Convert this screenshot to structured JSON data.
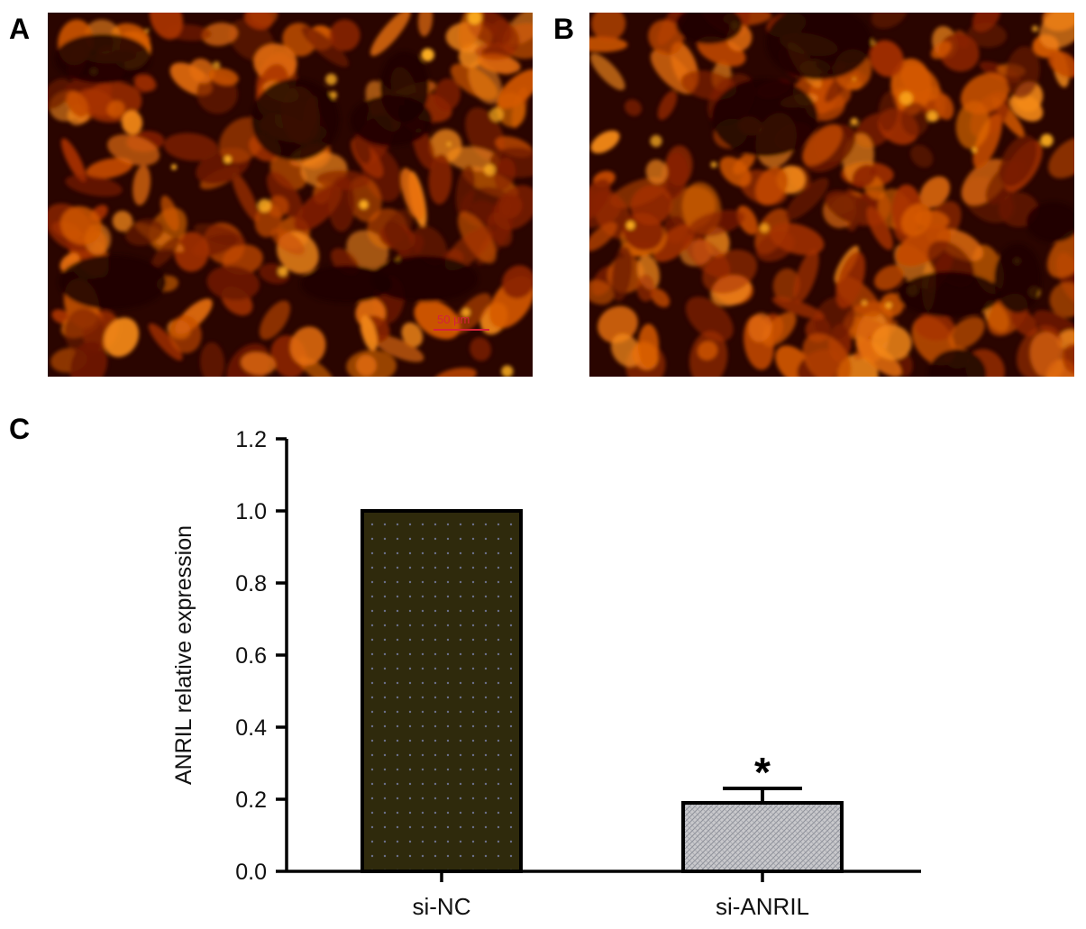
{
  "panels": {
    "a": {
      "letter": "A",
      "scale_bar": "50 μm"
    },
    "b": {
      "letter": "B"
    },
    "c": {
      "letter": "C"
    }
  },
  "colors": {
    "fluor_dark": "#2a0500",
    "fluor_mid": "#b83a00",
    "fluor_bright": "#ff8a10",
    "bar_nc_fill": "#2f2a0c",
    "bar_anril_fill": "#c9c9cc"
  },
  "chart_data": {
    "type": "bar",
    "categories": [
      "si-NC",
      "si-ANRIL"
    ],
    "values": [
      1.0,
      0.19
    ],
    "error": [
      0.0,
      0.04
    ],
    "significance": [
      "",
      "*"
    ],
    "ylabel": "ANRIL relative expression",
    "xlabel": "",
    "ylim": [
      0,
      1.2
    ],
    "yticks": [
      "0.0",
      "0.2",
      "0.4",
      "0.6",
      "0.8",
      "1.0",
      "1.2"
    ],
    "grid": false
  }
}
